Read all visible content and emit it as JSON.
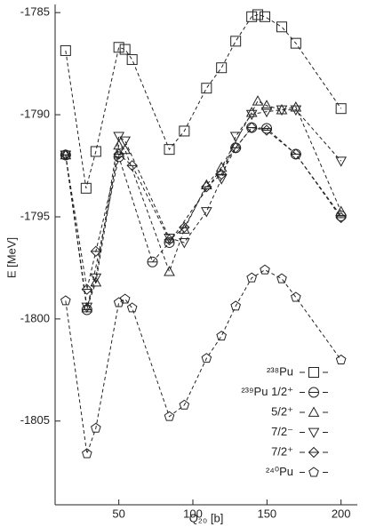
{
  "chart_data": {
    "type": "scatter",
    "xlabel": "Q₂₀ [b]",
    "ylabel": "E [MeV]",
    "xlim": [
      7,
      211
    ],
    "ylim": [
      -1809.1,
      -1784.6
    ],
    "xticks": [
      50,
      100,
      150,
      200
    ],
    "yticks": [
      -1785,
      -1790,
      -1795,
      -1800,
      -1805
    ],
    "series": [
      {
        "name": "²³⁸Pu",
        "marker": "square",
        "color": "#222222",
        "x": [
          14.1,
          27.9,
          34.5,
          50,
          54.2,
          59.0,
          84.1,
          94.2,
          109.2,
          119.3,
          128.9,
          139.7,
          143.8,
          148.6,
          160,
          169.5,
          200
        ],
        "values": [
          -1786.86,
          -1793.6,
          -1791.8,
          -1786.7,
          -1786.8,
          -1787.3,
          -1791.7,
          -1790.8,
          -1788.7,
          -1787.7,
          -1786.4,
          -1785.2,
          -1785.1,
          -1785.2,
          -1785.7,
          -1786.5,
          -1789.7
        ]
      },
      {
        "name": "²³⁹Pu 1/2⁺",
        "marker": "circle",
        "color": "#222222",
        "x": [
          14.1,
          28.5,
          50,
          72.7,
          84.1,
          128.9,
          139.7,
          149.8,
          169.5,
          200
        ],
        "values": [
          -1791.97,
          -1799.55,
          -1792.06,
          -1797.21,
          -1796.26,
          -1791.62,
          -1790.63,
          -1790.67,
          -1791.93,
          -1794.96
        ]
      },
      {
        "name": "5/2⁺",
        "marker": "triangle-up",
        "color": "#222222",
        "x": [
          14.1,
          28.5,
          34.5,
          50,
          54.2,
          84.1,
          94.2,
          109.2,
          119.3,
          139.7,
          143.8,
          149.8,
          160,
          169.5,
          200
        ],
        "values": [
          -1791.97,
          -1799.46,
          -1798.2,
          -1791.49,
          -1791.71,
          -1797.68,
          -1795.61,
          -1793.44,
          -1792.58,
          -1789.89,
          -1789.33,
          -1789.55,
          -1789.76,
          -1789.63,
          -1794.74
        ]
      },
      {
        "name": "7/2⁻",
        "marker": "triangle-down",
        "color": "#222222",
        "x": [
          14.1,
          28.5,
          34.5,
          50,
          54.2,
          84.1,
          94.2,
          109.2,
          119.3,
          128.9,
          139.7,
          149.8,
          160,
          169.5,
          200
        ],
        "values": [
          -1791.97,
          -1799.42,
          -1797.99,
          -1791.06,
          -1791.28,
          -1796.04,
          -1796.26,
          -1794.74,
          -1793.14,
          -1791.06,
          -1789.98,
          -1789.85,
          -1789.76,
          -1789.76,
          -1792.27
        ]
      },
      {
        "name": "7/2⁺",
        "marker": "diamond",
        "color": "#222222",
        "x": [
          14.1,
          28.5,
          34.5,
          50,
          59.0,
          84.1,
          94.2,
          109.2,
          119.3,
          128.9,
          139.7,
          149.8,
          169.5,
          200
        ],
        "values": [
          -1791.97,
          -1798.55,
          -1796.69,
          -1791.93,
          -1792.49,
          -1796.13,
          -1795.52,
          -1793.53,
          -1792.92,
          -1791.62,
          -1790.63,
          -1790.76,
          -1791.93,
          -1795.04
        ]
      },
      {
        "name": "²⁴⁰Pu",
        "marker": "pentagon",
        "color": "#222222",
        "x": [
          14.1,
          28.5,
          34.5,
          50,
          54.2,
          59.0,
          84.1,
          94.2,
          109.2,
          119.3,
          128.9,
          139.7,
          148.6,
          160,
          169.5,
          200
        ],
        "values": [
          -1799.11,
          -1806.6,
          -1805.35,
          -1799.2,
          -1799.03,
          -1799.46,
          -1804.78,
          -1804.22,
          -1801.93,
          -1800.84,
          -1799.37,
          -1797.99,
          -1797.6,
          -1798.03,
          -1798.94,
          -1802.01
        ]
      }
    ]
  }
}
